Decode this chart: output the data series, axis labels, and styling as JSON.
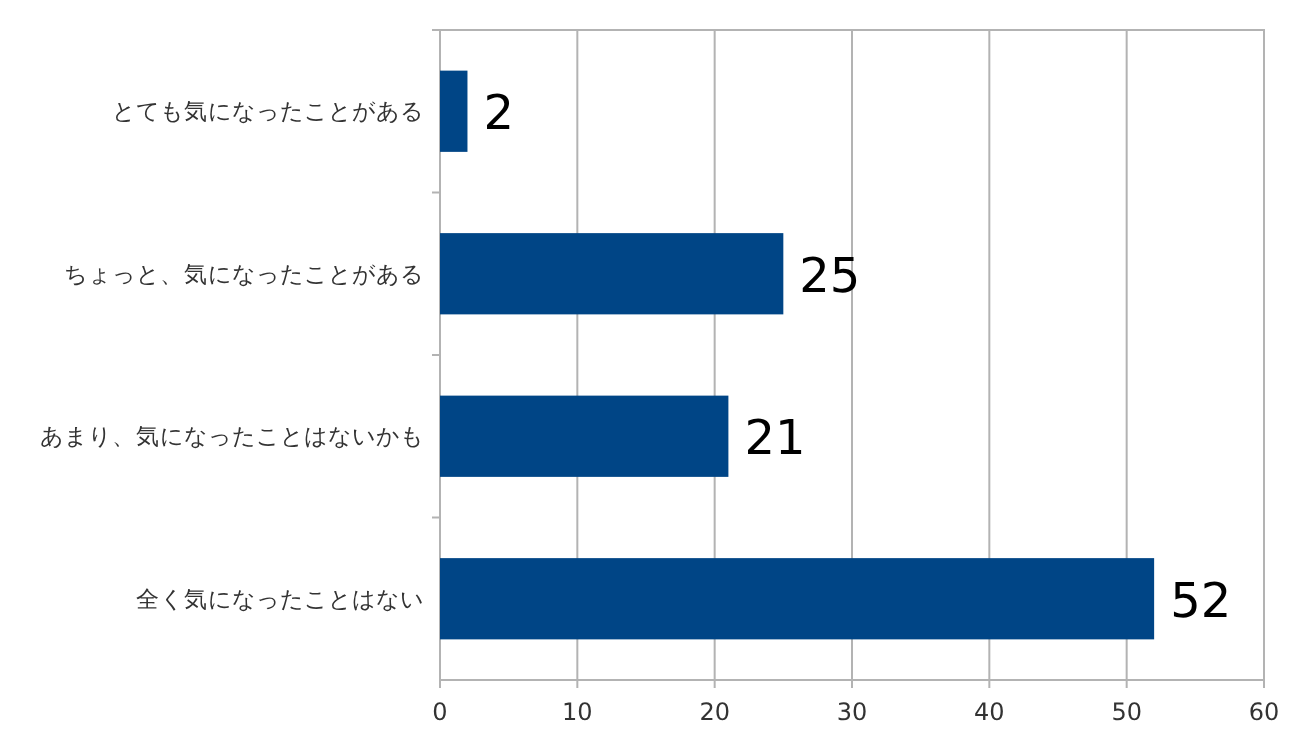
{
  "chart_data": {
    "type": "bar",
    "orientation": "horizontal",
    "categories": [
      "とても気になったことがある",
      "ちょっと、気になったことがある",
      "あまり、気になったことはないかも",
      "全く気になったことはない"
    ],
    "values": [
      2,
      25,
      21,
      52
    ],
    "color": "#004586",
    "xlim": [
      0,
      60
    ],
    "xticks": [
      0,
      10,
      20,
      30,
      40,
      50,
      60
    ],
    "grid": "x",
    "data_labels": true
  }
}
